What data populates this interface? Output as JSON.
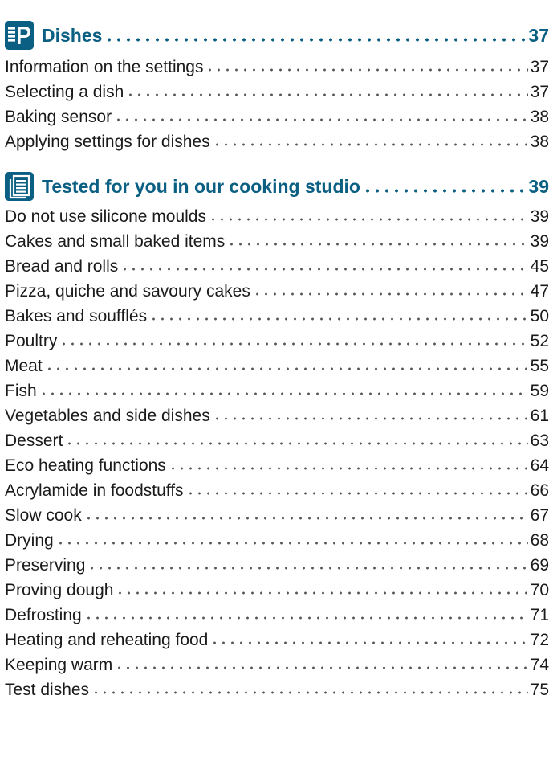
{
  "colors": {
    "accent": "#0a5f82",
    "text": "#1a1a1a"
  },
  "sections": [
    {
      "icon": "program-p-icon",
      "title": "Dishes",
      "page": "37",
      "entries": [
        {
          "label": "Information on the settings",
          "page": "37"
        },
        {
          "label": "Selecting a dish",
          "page": "37"
        },
        {
          "label": "Baking sensor",
          "page": "38"
        },
        {
          "label": "Applying settings for dishes",
          "page": "38"
        }
      ]
    },
    {
      "icon": "document-list-icon",
      "title": "Tested for you in our cooking studio",
      "page": "39",
      "entries": [
        {
          "label": "Do not use silicone moulds",
          "page": "39"
        },
        {
          "label": "Cakes and small baked items",
          "page": "39"
        },
        {
          "label": "Bread and rolls",
          "page": "45"
        },
        {
          "label": "Pizza, quiche and savoury cakes",
          "page": "47"
        },
        {
          "label": "Bakes and soufflés",
          "page": "50"
        },
        {
          "label": "Poultry",
          "page": "52"
        },
        {
          "label": "Meat",
          "page": "55"
        },
        {
          "label": "Fish",
          "page": "59"
        },
        {
          "label": "Vegetables and side dishes",
          "page": "61"
        },
        {
          "label": "Dessert",
          "page": "63"
        },
        {
          "label": "Eco heating functions",
          "page": "64"
        },
        {
          "label": "Acrylamide in foodstuffs",
          "page": "66"
        },
        {
          "label": "Slow cook",
          "page": "67"
        },
        {
          "label": "Drying",
          "page": "68"
        },
        {
          "label": "Preserving",
          "page": "69"
        },
        {
          "label": "Proving dough",
          "page": "70"
        },
        {
          "label": "Defrosting",
          "page": "71"
        },
        {
          "label": "Heating and reheating food",
          "page": "72"
        },
        {
          "label": "Keeping warm",
          "page": "74"
        },
        {
          "label": "Test dishes",
          "page": "75"
        }
      ]
    }
  ]
}
